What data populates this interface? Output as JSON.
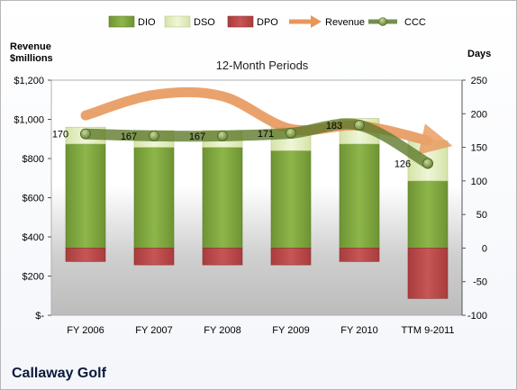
{
  "company_name": "Callaway Golf",
  "chart_data": {
    "type": "bar",
    "title": "12-Month Periods",
    "categories": [
      "FY 2006",
      "FY 2007",
      "FY 2008",
      "FY 2009",
      "FY 2010",
      "TTM 9-2011"
    ],
    "left_axis": {
      "label_line1": "Revenue",
      "label_line2": "$millions",
      "range": [
        0,
        1200
      ],
      "ticks": [
        0,
        200,
        400,
        600,
        800,
        1000,
        1200
      ],
      "tick_labels": [
        "$-",
        "$200",
        "$400",
        "$600",
        "$800",
        "$1,000",
        "$1,200"
      ]
    },
    "right_axis": {
      "label": "Days",
      "range": [
        -100,
        250
      ],
      "ticks": [
        -100,
        -50,
        0,
        50,
        100,
        150,
        200,
        250
      ],
      "tick_labels": [
        "-100",
        "-50",
        "0",
        "50",
        "100",
        "150",
        "200",
        "250"
      ]
    },
    "series": [
      {
        "name": "DIO",
        "axis": "right",
        "kind": "stacked-bar",
        "color": "#7ea43a",
        "values": [
          155,
          150,
          150,
          145,
          155,
          100
        ]
      },
      {
        "name": "DSO",
        "axis": "right",
        "kind": "stacked-bar",
        "color": "#e3efc4",
        "values": [
          25,
          25,
          25,
          35,
          38,
          60
        ]
      },
      {
        "name": "DPO",
        "axis": "right",
        "kind": "stacked-bar",
        "color": "#bf4b4b",
        "values": [
          -20,
          -25,
          -25,
          -25,
          -20,
          -75
        ]
      },
      {
        "name": "Revenue",
        "axis": "left",
        "kind": "arrow-line",
        "color": "#e8965a",
        "values": [
          1020,
          1125,
          1118,
          951,
          968,
          892
        ]
      },
      {
        "name": "CCC",
        "axis": "right",
        "kind": "line-markers",
        "color": "#5f7b2c",
        "values": [
          170,
          167,
          167,
          171,
          183,
          126
        ]
      }
    ],
    "data_labels": [
      "170",
      "167",
      "167",
      "171",
      "183",
      "126"
    ],
    "legend_position": "top",
    "grid": false
  }
}
